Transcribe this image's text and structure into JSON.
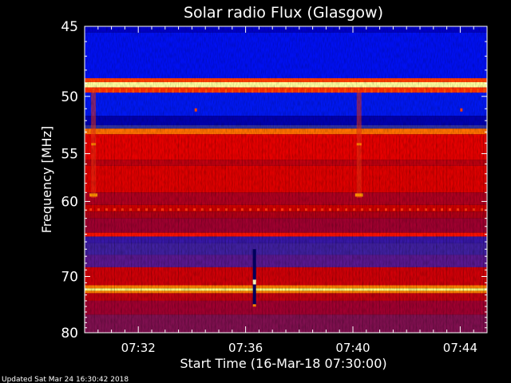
{
  "chart_data": {
    "type": "heatmap",
    "title": "Solar radio Flux (Glasgow)",
    "xlabel": "Start Time (16-Mar-18 07:30:00)",
    "ylabel": "Frequency [MHz]",
    "x_ticks": [
      "07:32",
      "07:36",
      "07:40",
      "07:44"
    ],
    "x_tick_minutes": [
      2,
      6,
      10,
      14
    ],
    "xlim_minutes": [
      0,
      15
    ],
    "y_ticks": [
      45,
      50,
      55,
      60,
      70,
      80
    ],
    "ylim": [
      45,
      80
    ],
    "y_scale": "reciprocal",
    "colormap": [
      "#0000c0",
      "#3020a0",
      "#a00030",
      "#e00000",
      "#ff6000",
      "#ffff80"
    ],
    "bands": [
      {
        "from": 45.0,
        "to": 45.4,
        "color": "#0000c8"
      },
      {
        "from": 45.4,
        "to": 48.6,
        "color": "#0010f0"
      },
      {
        "from": 48.6,
        "to": 48.9,
        "color": "#ff4000"
      },
      {
        "from": 48.9,
        "to": 49.3,
        "color": "#ffffa0"
      },
      {
        "from": 49.3,
        "to": 49.7,
        "color": "#ff3000"
      },
      {
        "from": 49.7,
        "to": 51.6,
        "color": "#0018f0"
      },
      {
        "from": 51.6,
        "to": 52.4,
        "color": "#0000b0"
      },
      {
        "from": 52.4,
        "to": 52.7,
        "color": "#3030a0"
      },
      {
        "from": 52.7,
        "to": 53.2,
        "color": "#ff7000"
      },
      {
        "from": 53.2,
        "to": 55.6,
        "color": "#e80000"
      },
      {
        "from": 55.6,
        "to": 56.2,
        "color": "#c00010"
      },
      {
        "from": 56.2,
        "to": 59.0,
        "color": "#e00000"
      },
      {
        "from": 59.0,
        "to": 60.4,
        "color": "#b00020"
      },
      {
        "from": 60.4,
        "to": 61.2,
        "color": "#d00000"
      },
      {
        "from": 61.2,
        "to": 62.0,
        "color": "#b00018"
      },
      {
        "from": 62.0,
        "to": 63.8,
        "color": "#a00030"
      },
      {
        "from": 63.8,
        "to": 64.3,
        "color": "#ff1000"
      },
      {
        "from": 64.3,
        "to": 65.2,
        "color": "#3818a8"
      },
      {
        "from": 65.2,
        "to": 66.8,
        "color": "#4020a0"
      },
      {
        "from": 66.8,
        "to": 68.6,
        "color": "#5a1890"
      },
      {
        "from": 68.6,
        "to": 71.4,
        "color": "#d00008"
      },
      {
        "from": 71.4,
        "to": 71.9,
        "color": "#ff8000"
      },
      {
        "from": 71.9,
        "to": 72.3,
        "color": "#ffff80"
      },
      {
        "from": 72.3,
        "to": 72.7,
        "color": "#ff8000"
      },
      {
        "from": 72.7,
        "to": 74.0,
        "color": "#c00010"
      },
      {
        "from": 74.0,
        "to": 76.5,
        "color": "#a00030"
      },
      {
        "from": 76.5,
        "to": 80.0,
        "color": "#801050"
      }
    ]
  },
  "footer": {
    "updated": "Updated Sat Mar 24 16:30:42 2018"
  }
}
